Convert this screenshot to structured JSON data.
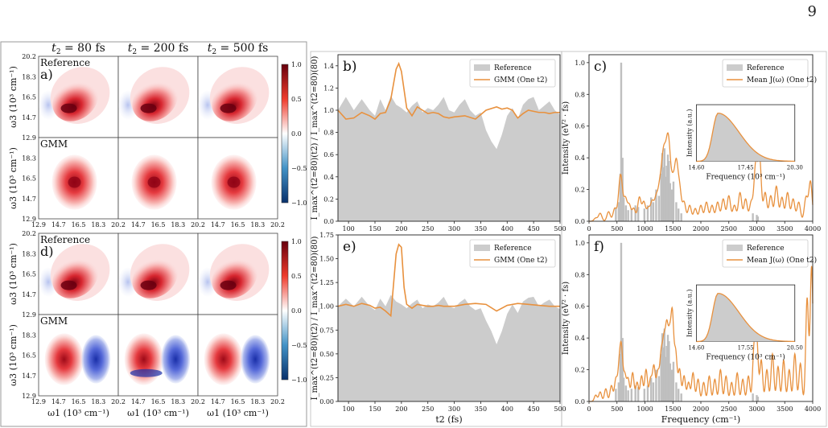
{
  "page": {
    "number": "9"
  },
  "panels_2d": [
    {
      "label": "a)",
      "columns": [
        "t2 = 80 fs",
        "t2 = 200 fs",
        "t2 = 500 fs"
      ],
      "rows": [
        "Reference",
        "GMM"
      ],
      "ylabel": "ω3 (10³ cm⁻¹)",
      "xticks": [
        "12.9",
        "14.7",
        "16.5",
        "18.3",
        "20.2"
      ],
      "yticks": [
        "20.2",
        "18.3",
        "16.5",
        "14.7",
        "12.9"
      ],
      "colorbar_ticks": [
        "1.0",
        "0.5",
        "0.0",
        "−0.5",
        "−1.0"
      ]
    },
    {
      "label": "d)",
      "rows": [
        "Reference",
        "GMM"
      ],
      "ylabel": "ω3 (10³ cm⁻¹)",
      "xlabel": "ω1 (10³ cm⁻¹)",
      "xticks": [
        "12.9",
        "14.7",
        "16.5",
        "18.3",
        "20.2"
      ],
      "yticks": [
        "20.2",
        "18.3",
        "16.5",
        "14.7",
        "12.9"
      ],
      "colorbar_ticks": [
        "1.0",
        "0.5",
        "0.0",
        "−0.5",
        "−1.0"
      ]
    }
  ],
  "chart_data": [
    {
      "id": "b",
      "label": "b)",
      "type": "area",
      "ylabel": "I_max^(t2=80)(t2) / I_max^(t2=80)(80)",
      "xlim": [
        80,
        500
      ],
      "ylim": [
        0,
        1.5
      ],
      "xticks": [
        100,
        150,
        200,
        250,
        300,
        350,
        400,
        450,
        500
      ],
      "yticks": [
        0.0,
        0.2,
        0.4,
        0.6,
        0.8,
        1.0,
        1.2,
        1.4
      ],
      "series": [
        {
          "name": "Reference",
          "kind": "area",
          "color": "#cccccc",
          "x": [
            80,
            95,
            110,
            125,
            140,
            150,
            160,
            170,
            180,
            190,
            200,
            210,
            220,
            230,
            240,
            250,
            260,
            270,
            280,
            290,
            300,
            310,
            320,
            330,
            340,
            350,
            360,
            370,
            380,
            390,
            400,
            410,
            420,
            430,
            440,
            450,
            460,
            470,
            480,
            490,
            500
          ],
          "y": [
            1.0,
            1.12,
            1.0,
            1.1,
            1.0,
            0.95,
            1.1,
            1.0,
            1.13,
            1.05,
            1.02,
            0.98,
            1.04,
            1.08,
            0.98,
            1.02,
            1.0,
            1.05,
            1.12,
            1.0,
            0.98,
            1.05,
            1.1,
            1.0,
            0.95,
            0.98,
            0.82,
            0.72,
            0.65,
            0.78,
            0.95,
            1.02,
            0.92,
            1.05,
            1.1,
            1.12,
            1.0,
            1.04,
            1.08,
            1.0,
            0.96
          ]
        },
        {
          "name": "GMM (One t2)",
          "kind": "line",
          "color": "#e8913e",
          "x": [
            80,
            95,
            110,
            125,
            140,
            150,
            160,
            170,
            180,
            190,
            195,
            200,
            210,
            220,
            230,
            240,
            250,
            260,
            270,
            280,
            290,
            300,
            320,
            340,
            360,
            380,
            390,
            400,
            410,
            420,
            430,
            440,
            450,
            460,
            470,
            480,
            490,
            500
          ],
          "y": [
            1.0,
            0.92,
            0.93,
            0.98,
            0.95,
            0.92,
            0.97,
            0.98,
            1.1,
            1.37,
            1.42,
            1.35,
            1.02,
            0.95,
            1.03,
            1.0,
            0.97,
            0.98,
            0.97,
            0.94,
            0.93,
            0.94,
            0.95,
            0.92,
            1.0,
            1.03,
            1.01,
            1.02,
            1.0,
            0.93,
            0.97,
            1.0,
            0.99,
            0.98,
            0.98,
            0.97,
            0.98,
            0.98
          ]
        }
      ]
    },
    {
      "id": "e",
      "label": "e)",
      "type": "area",
      "ylabel": "I_max^(t2=80)(t2) / I_max^(t2=80)(80)",
      "xlabel": "t2 (fs)",
      "xlim": [
        80,
        500
      ],
      "ylim": [
        0,
        1.75
      ],
      "xticks": [
        100,
        150,
        200,
        250,
        300,
        350,
        400,
        450,
        500
      ],
      "yticks": [
        0.0,
        0.25,
        0.5,
        0.75,
        1.0,
        1.25,
        1.5,
        1.75
      ],
      "series": [
        {
          "name": "Reference",
          "kind": "area",
          "color": "#cccccc",
          "x": [
            80,
            95,
            110,
            125,
            140,
            150,
            160,
            170,
            180,
            190,
            200,
            210,
            220,
            230,
            240,
            250,
            260,
            270,
            280,
            290,
            300,
            310,
            320,
            330,
            340,
            350,
            360,
            370,
            380,
            390,
            400,
            410,
            420,
            430,
            440,
            450,
            460,
            470,
            480,
            490,
            500
          ],
          "y": [
            1.0,
            1.08,
            1.0,
            1.1,
            1.0,
            0.96,
            1.08,
            1.0,
            1.12,
            1.05,
            1.02,
            0.98,
            1.03,
            1.07,
            0.98,
            1.02,
            1.0,
            1.04,
            1.1,
            1.0,
            0.98,
            1.04,
            1.08,
            1.0,
            0.96,
            0.98,
            0.85,
            0.74,
            0.6,
            0.74,
            0.92,
            1.02,
            0.93,
            1.05,
            1.09,
            1.1,
            1.0,
            1.04,
            1.07,
            1.0,
            0.97
          ]
        },
        {
          "name": "GMM (One t2)",
          "kind": "line",
          "color": "#e8913e",
          "x": [
            80,
            95,
            110,
            125,
            140,
            150,
            160,
            170,
            180,
            190,
            195,
            200,
            205,
            210,
            220,
            230,
            240,
            250,
            260,
            270,
            280,
            290,
            300,
            320,
            340,
            360,
            380,
            400,
            420,
            440,
            460,
            480,
            500
          ],
          "y": [
            1.0,
            1.02,
            1.0,
            1.03,
            1.01,
            0.98,
            0.99,
            0.95,
            0.9,
            1.55,
            1.65,
            1.62,
            1.2,
            1.02,
            0.98,
            1.02,
            1.01,
            1.0,
            1.0,
            1.01,
            1.0,
            1.0,
            1.0,
            1.02,
            1.03,
            1.02,
            0.95,
            1.01,
            1.03,
            1.02,
            1.01,
            1.0,
            1.0
          ]
        }
      ]
    },
    {
      "id": "c",
      "label": "c)",
      "type": "area",
      "ylabel": "Intensity (eV² · fs)",
      "xlim": [
        0,
        4000
      ],
      "ylim": [
        0,
        1.05
      ],
      "xticks": [
        0,
        500,
        1000,
        1500,
        2000,
        2500,
        3000,
        3500,
        4000
      ],
      "yticks": [
        0.0,
        0.2,
        0.4,
        0.6,
        0.8,
        1.0
      ],
      "series": [
        {
          "name": "Reference",
          "kind": "sticks",
          "color": "#bfbfbf",
          "x": [
            480,
            530,
            560,
            575,
            600,
            620,
            660,
            700,
            760,
            830,
            880,
            990,
            1050,
            1110,
            1150,
            1200,
            1250,
            1290,
            1310,
            1330,
            1350,
            1370,
            1390,
            1410,
            1430,
            1450,
            1480,
            1510,
            1560,
            1600,
            1650,
            2930,
            3000,
            3020
          ],
          "y": [
            0.08,
            0.12,
            0.3,
            1.0,
            0.4,
            0.15,
            0.1,
            0.07,
            0.08,
            0.1,
            0.09,
            0.08,
            0.1,
            0.15,
            0.12,
            0.2,
            0.16,
            0.3,
            0.43,
            0.34,
            0.46,
            0.28,
            0.35,
            0.42,
            0.38,
            0.24,
            0.2,
            0.25,
            0.12,
            0.08,
            0.05,
            0.05,
            0.04,
            0.03
          ]
        },
        {
          "name": "Mean J(ω) (One t2)",
          "kind": "peaks",
          "color": "#e8913e",
          "width": 30,
          "centers": [
            120,
            200,
            350,
            460,
            540,
            575,
            650,
            720,
            800,
            900,
            980,
            1060,
            1130,
            1200,
            1260,
            1310,
            1350,
            1400,
            1440,
            1500,
            1560,
            1620,
            1700,
            1800,
            1900,
            2000,
            2100,
            2200,
            2300,
            2400,
            2500,
            2600,
            2700,
            2800,
            2900,
            2980,
            3050,
            3150,
            3250,
            3350,
            3450,
            3550,
            3650,
            3750,
            3880,
            3960
          ],
          "heights": [
            0.02,
            0.05,
            0.06,
            0.08,
            0.12,
            0.22,
            0.14,
            0.1,
            0.08,
            0.15,
            0.12,
            0.08,
            0.12,
            0.14,
            0.18,
            0.24,
            0.3,
            0.35,
            0.3,
            0.22,
            0.34,
            0.2,
            0.12,
            0.1,
            0.08,
            0.1,
            0.12,
            0.1,
            0.12,
            0.14,
            0.16,
            0.1,
            0.18,
            0.14,
            0.12,
            0.35,
            0.4,
            0.18,
            0.16,
            0.22,
            0.15,
            0.18,
            0.14,
            0.12,
            0.15,
            0.25
          ]
        }
      ],
      "inset": {
        "ylabel": "Intensity (a.u.)",
        "xlabel": "Frequency (10³ cm⁻¹)",
        "xticks": [
          "14.60",
          "17.45",
          "20.30"
        ]
      }
    },
    {
      "id": "f",
      "label": "f)",
      "type": "area",
      "ylabel": "Intensity (eV² · fs)",
      "xlabel": "Frequency (cm⁻¹)",
      "xlim": [
        0,
        4000
      ],
      "ylim": [
        0,
        1.05
      ],
      "xticks": [
        0,
        500,
        1000,
        1500,
        2000,
        2500,
        3000,
        3500,
        4000
      ],
      "yticks": [
        0.0,
        0.2,
        0.4,
        0.6,
        0.8,
        1.0
      ],
      "series": [
        {
          "name": "Reference",
          "kind": "sticks",
          "color": "#bfbfbf",
          "x": [
            480,
            530,
            560,
            575,
            600,
            620,
            660,
            700,
            760,
            830,
            880,
            990,
            1050,
            1110,
            1150,
            1200,
            1250,
            1290,
            1310,
            1330,
            1350,
            1370,
            1390,
            1410,
            1430,
            1450,
            1480,
            1510,
            1560,
            1600,
            1650,
            2930,
            3000,
            3020
          ],
          "y": [
            0.08,
            0.12,
            0.3,
            1.0,
            0.4,
            0.15,
            0.1,
            0.07,
            0.08,
            0.1,
            0.09,
            0.08,
            0.1,
            0.15,
            0.12,
            0.2,
            0.16,
            0.3,
            0.43,
            0.34,
            0.46,
            0.28,
            0.35,
            0.42,
            0.38,
            0.24,
            0.2,
            0.25,
            0.12,
            0.08,
            0.05,
            0.05,
            0.04,
            0.03
          ]
        },
        {
          "name": "Mean J(ω) (One t2)",
          "kind": "peaks",
          "color": "#e8913e",
          "width": 25,
          "centers": [
            120,
            200,
            300,
            400,
            480,
            540,
            580,
            640,
            700,
            780,
            860,
            940,
            1020,
            1100,
            1160,
            1230,
            1290,
            1340,
            1390,
            1440,
            1490,
            1550,
            1620,
            1700,
            1780,
            1860,
            1950,
            2050,
            2150,
            2250,
            2350,
            2450,
            2550,
            2650,
            2750,
            2850,
            2950,
            3000,
            3080,
            3180,
            3280,
            3380,
            3480,
            3580,
            3680,
            3780,
            3900,
            3980
          ],
          "heights": [
            0.04,
            0.06,
            0.08,
            0.1,
            0.14,
            0.2,
            0.3,
            0.16,
            0.14,
            0.18,
            0.12,
            0.16,
            0.2,
            0.14,
            0.22,
            0.18,
            0.28,
            0.34,
            0.42,
            0.36,
            0.52,
            0.3,
            0.2,
            0.16,
            0.12,
            0.18,
            0.14,
            0.12,
            0.16,
            0.14,
            0.2,
            0.16,
            0.12,
            0.18,
            0.14,
            0.16,
            0.32,
            0.38,
            0.26,
            0.2,
            0.3,
            0.22,
            0.26,
            0.2,
            0.3,
            0.24,
            0.65,
            0.85
          ]
        }
      ],
      "inset": {
        "ylabel": "Intensity (a.u.)",
        "xlabel": "Frequency (10³ cm⁻¹)",
        "xticks": [
          "14.60",
          "17.55",
          "20.50"
        ]
      }
    }
  ],
  "legend": {
    "reference": "Reference",
    "gmm": "GMM (One t2)",
    "mean": "Mean J(ω) (One t2)"
  }
}
